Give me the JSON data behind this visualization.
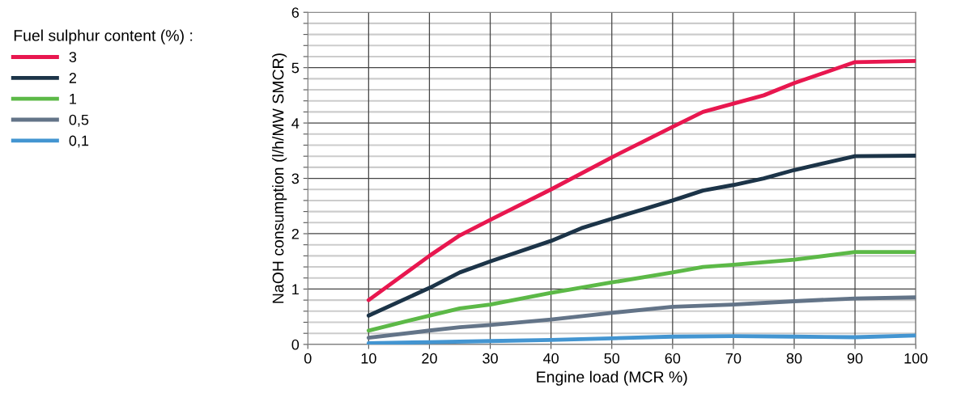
{
  "chart_data": {
    "type": "line",
    "xlabel": "Engine load (MCR %)",
    "ylabel": "NaOH consumption (l/h/MW SMCR)",
    "legend_title": "Fuel sulphur content (%) :",
    "legend": "left",
    "grid": true,
    "marker": "none",
    "line_style": "solid",
    "xlim": [
      0,
      100
    ],
    "xticks": [
      0,
      10,
      20,
      30,
      40,
      50,
      60,
      70,
      80,
      90,
      100
    ],
    "ylim": [
      0,
      6
    ],
    "yticks": [
      0,
      {
        "value": 0.2,
        "label": null
      },
      {
        "value": 0.4,
        "label": null
      },
      {
        "value": 0.6,
        "label": null
      },
      {
        "value": 0.8,
        "label": null
      },
      1,
      {
        "value": 1.2,
        "label": null
      },
      {
        "value": 1.4,
        "label": null
      },
      {
        "value": 1.6,
        "label": null
      },
      {
        "value": 1.8,
        "label": null
      },
      2,
      {
        "value": 2.2,
        "label": null
      },
      {
        "value": 2.4,
        "label": null
      },
      {
        "value": 2.6,
        "label": null
      },
      {
        "value": 2.8,
        "label": null
      },
      3,
      {
        "value": 3.2,
        "label": null
      },
      {
        "value": 3.4,
        "label": null
      },
      {
        "value": 3.6,
        "label": null
      },
      {
        "value": 3.8,
        "label": null
      },
      4,
      {
        "value": 4.2,
        "label": null
      },
      {
        "value": 4.4,
        "label": null
      },
      {
        "value": 4.6,
        "label": null
      },
      {
        "value": 4.8,
        "label": null
      },
      5,
      {
        "value": 5.2,
        "label": null
      },
      {
        "value": 5.4,
        "label": null
      },
      {
        "value": 5.6,
        "label": null
      },
      {
        "value": 5.8,
        "label": null
      },
      6
    ],
    "series": [
      {
        "name": "3",
        "color": "#e8174f",
        "x": [
          10,
          20,
          25,
          30,
          40,
          50,
          60,
          65,
          70,
          75,
          80,
          90,
          100
        ],
        "values": [
          0.8,
          1.6,
          1.97,
          2.25,
          2.8,
          3.38,
          3.93,
          4.2,
          4.35,
          4.5,
          4.72,
          5.1,
          5.12
        ]
      },
      {
        "name": "2",
        "color": "#1c3448",
        "x": [
          10,
          20,
          25,
          30,
          40,
          45,
          50,
          60,
          65,
          70,
          75,
          80,
          90,
          100
        ],
        "values": [
          0.52,
          1.02,
          1.3,
          1.5,
          1.87,
          2.1,
          2.27,
          2.6,
          2.78,
          2.88,
          3.0,
          3.15,
          3.4,
          3.41
        ]
      },
      {
        "name": "1",
        "color": "#5cb947",
        "x": [
          10,
          20,
          25,
          30,
          40,
          50,
          60,
          65,
          70,
          80,
          90,
          100
        ],
        "values": [
          0.25,
          0.52,
          0.65,
          0.72,
          0.93,
          1.12,
          1.3,
          1.4,
          1.44,
          1.53,
          1.67,
          1.67
        ]
      },
      {
        "name": "0,5",
        "color": "#637488",
        "x": [
          10,
          20,
          25,
          30,
          40,
          50,
          60,
          70,
          80,
          90,
          100
        ],
        "values": [
          0.12,
          0.25,
          0.31,
          0.35,
          0.45,
          0.57,
          0.68,
          0.72,
          0.78,
          0.83,
          0.85
        ]
      },
      {
        "name": "0,1",
        "color": "#4395d1",
        "x": [
          10,
          20,
          30,
          40,
          50,
          60,
          70,
          80,
          90,
          100
        ],
        "values": [
          0.02,
          0.04,
          0.06,
          0.08,
          0.11,
          0.14,
          0.15,
          0.14,
          0.13,
          0.16
        ]
      }
    ]
  }
}
